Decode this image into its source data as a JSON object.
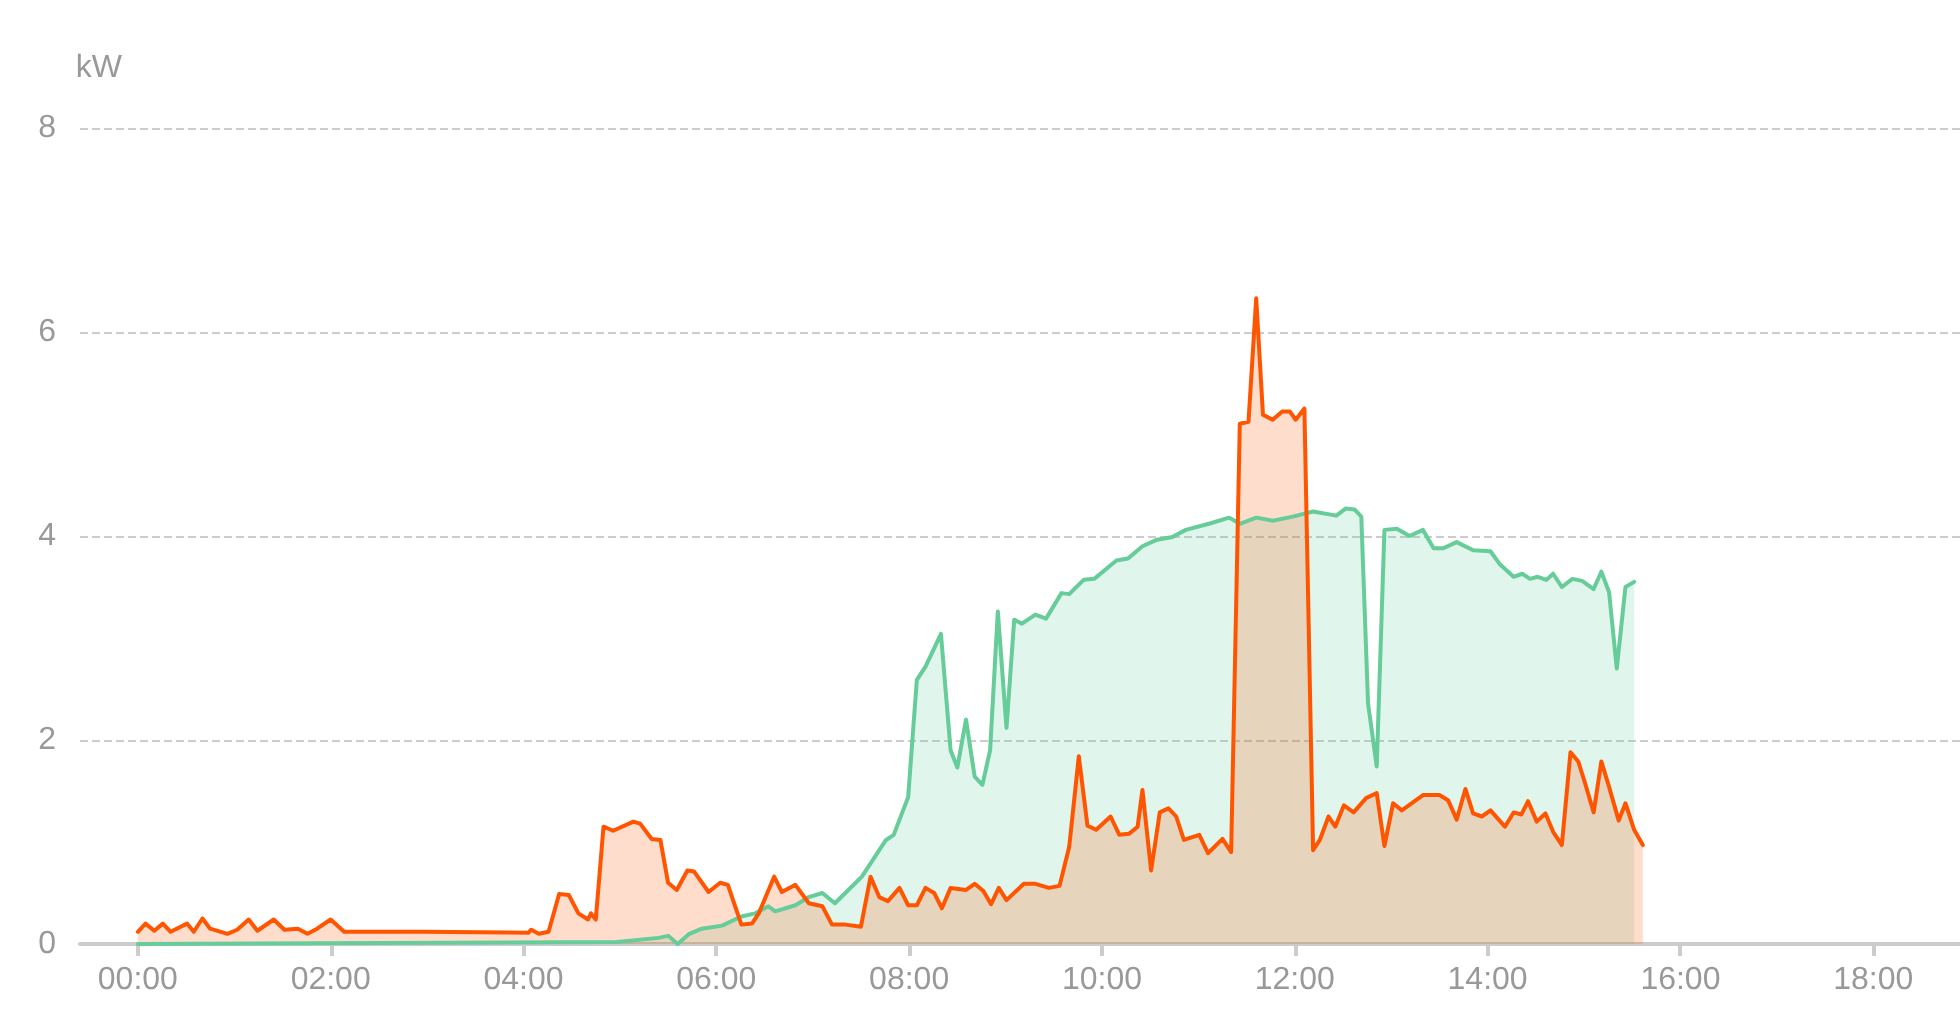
{
  "chart_data": {
    "type": "area",
    "ylabel": "kW",
    "xlim": [
      -0.6,
      18.9
    ],
    "ylim": [
      0,
      8
    ],
    "xticks": [
      {
        "value": 0,
        "label": "00:00"
      },
      {
        "value": 2,
        "label": "02:00"
      },
      {
        "value": 4,
        "label": "04:00"
      },
      {
        "value": 6,
        "label": "06:00"
      },
      {
        "value": 8,
        "label": "08:00"
      },
      {
        "value": 10,
        "label": "10:00"
      },
      {
        "value": 12,
        "label": "12:00"
      },
      {
        "value": 14,
        "label": "14:00"
      },
      {
        "value": 16,
        "label": "16:00"
      },
      {
        "value": 18,
        "label": "18:00"
      }
    ],
    "yticks": [
      0,
      2,
      4,
      6,
      8
    ],
    "grid": "y",
    "marker": "none",
    "line_style": "solid",
    "series": [
      {
        "color": "#66cc99",
        "x": [
          0,
          4.97,
          5.4,
          5.5,
          5.6,
          5.72,
          5.85,
          6.06,
          6.26,
          6.4,
          6.54,
          6.61,
          6.82,
          6.96,
          7.1,
          7.23,
          7.51,
          7.76,
          7.84,
          7.99,
          8.08,
          8.17,
          8.33,
          8.43,
          8.5,
          8.59,
          8.68,
          8.76,
          8.84,
          8.92,
          9.01,
          9.09,
          9.17,
          9.31,
          9.42,
          9.58,
          9.66,
          9.81,
          9.92,
          10.15,
          10.27,
          10.42,
          10.56,
          10.73,
          10.87,
          11.11,
          11.32,
          11.43,
          11.6,
          11.77,
          11.98,
          12.19,
          12.43,
          12.53,
          12.62,
          12.69,
          12.76,
          12.85,
          12.93,
          13.06,
          13.19,
          13.33,
          13.44,
          13.54,
          13.68,
          13.85,
          14.03,
          14.13,
          14.27,
          14.36,
          14.44,
          14.52,
          14.61,
          14.68,
          14.77,
          14.88,
          14.98,
          15.1,
          15.18,
          15.26,
          15.34,
          15.43,
          15.52
        ],
        "values": [
          0,
          0.02,
          0.06,
          0.08,
          0,
          0.1,
          0.15,
          0.18,
          0.27,
          0.3,
          0.37,
          0.32,
          0.38,
          0.46,
          0.5,
          0.4,
          0.66,
          1.02,
          1.07,
          1.44,
          2.59,
          2.72,
          3.04,
          1.9,
          1.73,
          2.2,
          1.64,
          1.56,
          1.9,
          3.26,
          2.12,
          3.18,
          3.14,
          3.23,
          3.19,
          3.44,
          3.43,
          3.57,
          3.58,
          3.76,
          3.78,
          3.9,
          3.96,
          3.99,
          4.06,
          4.12,
          4.18,
          4.12,
          4.18,
          4.15,
          4.19,
          4.24,
          4.2,
          4.27,
          4.26,
          4.19,
          2.36,
          1.74,
          4.06,
          4.07,
          4,
          4.06,
          3.88,
          3.88,
          3.94,
          3.86,
          3.85,
          3.72,
          3.6,
          3.63,
          3.58,
          3.6,
          3.57,
          3.63,
          3.5,
          3.58,
          3.56,
          3.48,
          3.65,
          3.45,
          2.7,
          3.5,
          3.55
        ]
      },
      {
        "color": "#ff5500",
        "x": [
          0,
          0.08,
          0.17,
          0.26,
          0.34,
          0.51,
          0.58,
          0.67,
          0.75,
          0.93,
          1.03,
          1.15,
          1.24,
          1.41,
          1.52,
          1.66,
          1.76,
          1.86,
          2,
          2.14,
          2.97,
          4.05,
          4.08,
          4.16,
          4.26,
          4.37,
          4.47,
          4.57,
          4.67,
          4.7,
          4.75,
          4.83,
          4.93,
          5.14,
          5.21,
          5.33,
          5.42,
          5.5,
          5.59,
          5.7,
          5.77,
          5.92,
          6.04,
          6.12,
          6.26,
          6.37,
          6.44,
          6.6,
          6.68,
          6.82,
          6.96,
          7.1,
          7.2,
          7.34,
          7.5,
          7.6,
          7.69,
          7.78,
          7.9,
          7.99,
          8.08,
          8.17,
          8.26,
          8.34,
          8.43,
          8.59,
          8.68,
          8.77,
          8.85,
          8.93,
          9.01,
          9.19,
          9.31,
          9.45,
          9.56,
          9.66,
          9.76,
          9.85,
          9.94,
          10.09,
          10.18,
          10.28,
          10.37,
          10.42,
          10.51,
          10.6,
          10.69,
          10.77,
          10.85,
          11.01,
          11.1,
          11.25,
          11.34,
          11.43,
          11.52,
          11.6,
          11.67,
          11.77,
          11.87,
          11.95,
          12.01,
          12.1,
          12.19,
          12.26,
          12.35,
          12.42,
          12.51,
          12.61,
          12.74,
          12.85,
          12.93,
          13.02,
          13.11,
          13.33,
          13.5,
          13.59,
          13.68,
          13.77,
          13.85,
          13.94,
          14.03,
          14.18,
          14.27,
          14.35,
          14.42,
          14.51,
          14.6,
          14.68,
          14.77,
          14.86,
          14.94,
          15.01,
          15.1,
          15.18,
          15.26,
          15.36,
          15.43,
          15.52,
          15.61
        ],
        "values": [
          0.12,
          0.2,
          0.13,
          0.2,
          0.12,
          0.2,
          0.12,
          0.25,
          0.15,
          0.1,
          0.14,
          0.24,
          0.13,
          0.24,
          0.14,
          0.15,
          0.1,
          0.15,
          0.24,
          0.12,
          0.12,
          0.11,
          0.14,
          0.1,
          0.12,
          0.49,
          0.48,
          0.3,
          0.24,
          0.3,
          0.24,
          1.15,
          1.11,
          1.2,
          1.18,
          1.03,
          1.02,
          0.6,
          0.53,
          0.72,
          0.71,
          0.51,
          0.6,
          0.58,
          0.19,
          0.2,
          0.3,
          0.66,
          0.51,
          0.58,
          0.4,
          0.37,
          0.19,
          0.19,
          0.17,
          0.66,
          0.46,
          0.42,
          0.55,
          0.38,
          0.38,
          0.55,
          0.5,
          0.35,
          0.55,
          0.53,
          0.59,
          0.52,
          0.39,
          0.55,
          0.43,
          0.59,
          0.59,
          0.55,
          0.57,
          0.95,
          1.84,
          1.16,
          1.12,
          1.25,
          1.07,
          1.08,
          1.15,
          1.51,
          0.72,
          1.29,
          1.33,
          1.25,
          1.02,
          1.07,
          0.89,
          1.03,
          0.9,
          5.1,
          5.12,
          6.33,
          5.19,
          5.14,
          5.22,
          5.22,
          5.14,
          5.25,
          0.92,
          1.02,
          1.25,
          1.15,
          1.36,
          1.29,
          1.43,
          1.48,
          0.96,
          1.38,
          1.31,
          1.46,
          1.46,
          1.41,
          1.22,
          1.52,
          1.28,
          1.25,
          1.31,
          1.15,
          1.29,
          1.27,
          1.4,
          1.2,
          1.28,
          1.1,
          0.97,
          1.88,
          1.79,
          1.58,
          1.29,
          1.79,
          1.54,
          1.21,
          1.38,
          1.12,
          0.97
        ]
      }
    ]
  }
}
